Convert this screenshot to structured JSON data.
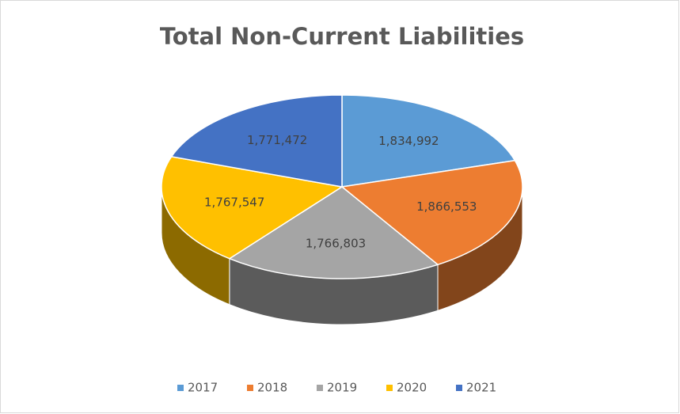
{
  "chart_data": {
    "type": "pie",
    "title": "Total Non-Current Liabilities",
    "categories": [
      "2017",
      "2018",
      "2019",
      "2020",
      "2021"
    ],
    "values": [
      1834992,
      1866553,
      1766803,
      1767547,
      1771472
    ],
    "value_labels": [
      "1,834,992",
      "1,866,553",
      "1,766,803",
      "1,767,547",
      "1,771,472"
    ],
    "colors": [
      "#5b9bd5",
      "#ed7d31",
      "#a5a5a5",
      "#ffc000",
      "#4472c4"
    ],
    "legend": "bottom"
  }
}
